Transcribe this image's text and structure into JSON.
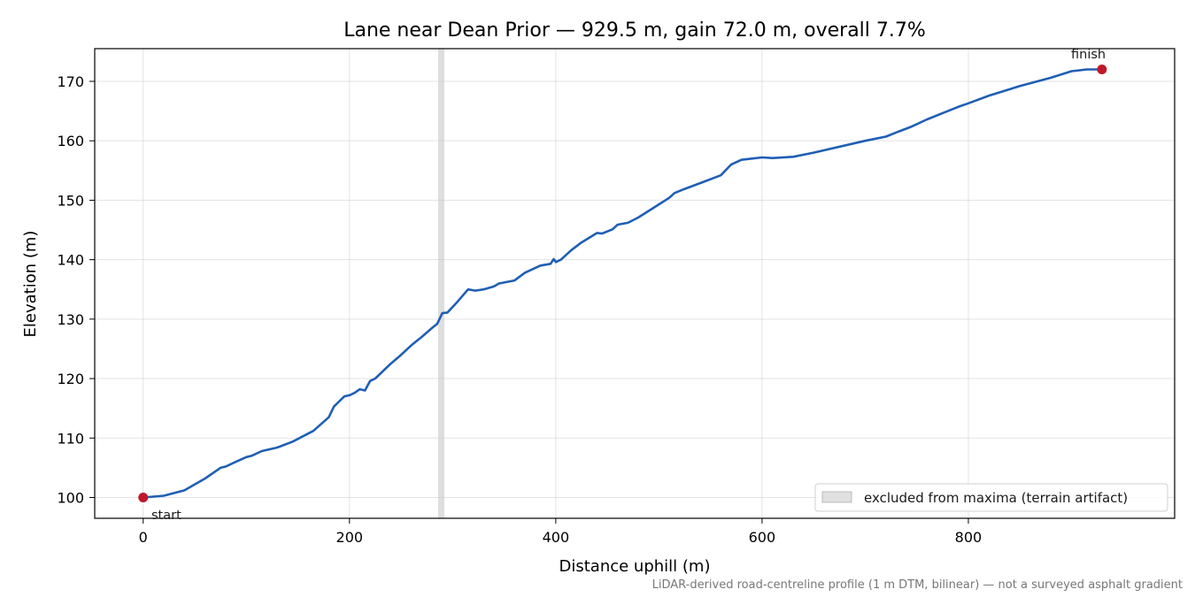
{
  "chart_data": {
    "type": "line",
    "title": "Lane near Dean Prior — 929.5 m, gain 72.0 m, overall 7.7%",
    "xlabel": "Distance uphill (m)",
    "ylabel": "Elevation (m)",
    "xlim": [
      -47,
      1000
    ],
    "ylim": [
      96.5,
      175.5
    ],
    "xticks": [
      0,
      200,
      400,
      600,
      800
    ],
    "yticks": [
      100,
      110,
      120,
      130,
      140,
      150,
      160,
      170
    ],
    "grid": true,
    "legend_position": "lower-right",
    "legend": [
      "excluded from maxima (terrain artifact)"
    ],
    "excluded_range": [
      286,
      292
    ],
    "series": [
      {
        "color": "#1f5fb4",
        "x": [
          0,
          20,
          40,
          60,
          75,
          80,
          90,
          100,
          105,
          115,
          130,
          145,
          155,
          165,
          180,
          185,
          195,
          200,
          205,
          210,
          215,
          220,
          225,
          240,
          250,
          260,
          270,
          280,
          285,
          290,
          295,
          305,
          315,
          322,
          330,
          340,
          345,
          360,
          370,
          385,
          395,
          398,
          400,
          405,
          415,
          425,
          440,
          445,
          455,
          460,
          470,
          480,
          500,
          510,
          515,
          525,
          545,
          560,
          570,
          580,
          590,
          600,
          610,
          630,
          650,
          700,
          720,
          730,
          745,
          760,
          790,
          800,
          820,
          850,
          880,
          900,
          915,
          929.5
        ],
        "y": [
          100,
          100.3,
          101.2,
          103.2,
          105,
          105.2,
          106,
          106.8,
          107,
          107.8,
          108.4,
          109.4,
          110.3,
          111.2,
          113.5,
          115.3,
          117,
          117.2,
          117.6,
          118.2,
          118,
          119.6,
          120,
          122.5,
          124,
          125.6,
          127,
          128.5,
          129.2,
          131,
          131.1,
          133,
          135,
          134.8,
          135,
          135.5,
          136,
          136.5,
          137.8,
          139,
          139.3,
          140.1,
          139.6,
          140,
          141.6,
          142.9,
          144.5,
          144.4,
          145.1,
          145.9,
          146.2,
          147.1,
          149.3,
          150.4,
          151.2,
          151.9,
          153.2,
          154.2,
          156,
          156.8,
          157,
          157.2,
          157.1,
          157.3,
          158,
          160,
          160.7,
          161.4,
          162.4,
          163.6,
          165.7,
          166.3,
          167.6,
          169.2,
          170.6,
          171.7,
          172,
          172
        ]
      }
    ],
    "annotations": [
      {
        "text": "start",
        "x": 0,
        "y": 100
      },
      {
        "text": "finish",
        "x": 929.5,
        "y": 172
      }
    ],
    "marker_color": "#c0182a",
    "footnote": "LiDAR-derived road-centreline profile (1 m DTM, bilinear) — not a surveyed asphalt gradient"
  }
}
